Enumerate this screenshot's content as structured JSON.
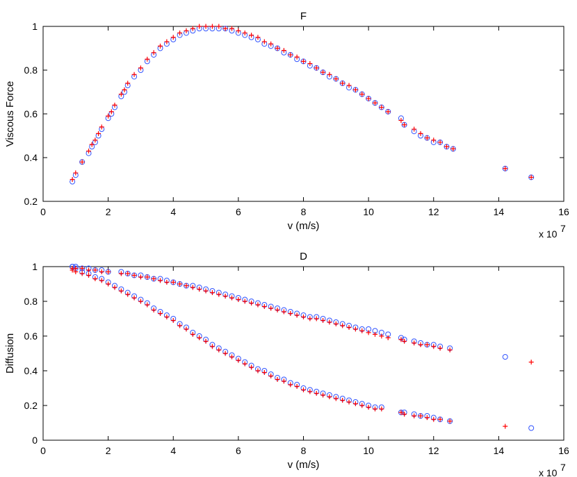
{
  "x_multiplier": "x 10",
  "x_exponent": "7",
  "colors": {
    "series_circle": "#3355ff",
    "series_plus": "#ff0000"
  },
  "chart_data": [
    {
      "type": "scatter",
      "title": "F",
      "xlabel": "v (m/s)",
      "ylabel": "Viscous Force",
      "xlim": [
        0,
        16
      ],
      "ylim": [
        0.2,
        1.0
      ],
      "xticks": [
        0,
        2,
        4,
        6,
        8,
        10,
        12,
        14,
        16
      ],
      "yticks": [
        0.2,
        0.4,
        0.6,
        0.8,
        1.0
      ],
      "xtick_labels": [
        "0",
        "2",
        "4",
        "6",
        "8",
        "10",
        "12",
        "14",
        "16"
      ],
      "ytick_labels": [
        "0.2",
        "0.4",
        "0.6",
        "0.8",
        "1"
      ],
      "grid": false,
      "series": [
        {
          "marker": "circle",
          "color": "#3355ff",
          "x": [
            0.9,
            1.0,
            1.2,
            1.4,
            1.5,
            1.6,
            1.7,
            1.8,
            2.0,
            2.1,
            2.2,
            2.4,
            2.5,
            2.6,
            2.8,
            3.0,
            3.2,
            3.4,
            3.6,
            3.8,
            4.0,
            4.2,
            4.4,
            4.6,
            4.8,
            5.0,
            5.2,
            5.4,
            5.6,
            5.8,
            6.0,
            6.2,
            6.4,
            6.6,
            6.8,
            7.0,
            7.2,
            7.4,
            7.6,
            7.8,
            8.0,
            8.2,
            8.4,
            8.6,
            8.8,
            9.0,
            9.2,
            9.4,
            9.6,
            9.8,
            10.0,
            10.2,
            10.4,
            10.6,
            11.0,
            11.1,
            11.4,
            11.6,
            11.8,
            12.0,
            12.2,
            12.4,
            12.6,
            14.2,
            15.0
          ],
          "y": [
            0.29,
            0.32,
            0.38,
            0.42,
            0.45,
            0.47,
            0.5,
            0.53,
            0.58,
            0.6,
            0.63,
            0.68,
            0.7,
            0.73,
            0.77,
            0.8,
            0.84,
            0.87,
            0.9,
            0.92,
            0.94,
            0.96,
            0.97,
            0.98,
            0.99,
            0.99,
            0.99,
            0.99,
            0.99,
            0.98,
            0.97,
            0.96,
            0.95,
            0.94,
            0.92,
            0.91,
            0.9,
            0.88,
            0.87,
            0.85,
            0.84,
            0.82,
            0.81,
            0.79,
            0.77,
            0.76,
            0.74,
            0.72,
            0.71,
            0.69,
            0.67,
            0.65,
            0.63,
            0.61,
            0.58,
            0.55,
            0.52,
            0.5,
            0.49,
            0.47,
            0.47,
            0.45,
            0.44,
            0.35,
            0.31
          ]
        },
        {
          "marker": "plus",
          "color": "#ff0000",
          "x": [
            0.9,
            1.0,
            1.2,
            1.4,
            1.5,
            1.6,
            1.7,
            1.8,
            2.0,
            2.1,
            2.2,
            2.4,
            2.5,
            2.6,
            2.8,
            3.0,
            3.2,
            3.4,
            3.6,
            3.8,
            4.0,
            4.2,
            4.4,
            4.6,
            4.8,
            5.0,
            5.2,
            5.4,
            5.6,
            5.8,
            6.0,
            6.2,
            6.4,
            6.6,
            6.8,
            7.0,
            7.2,
            7.4,
            7.6,
            7.8,
            8.0,
            8.2,
            8.4,
            8.6,
            8.8,
            9.0,
            9.2,
            9.4,
            9.6,
            9.8,
            10.0,
            10.2,
            10.4,
            10.6,
            11.0,
            11.1,
            11.4,
            11.6,
            11.8,
            12.0,
            12.2,
            12.4,
            12.6,
            14.2,
            15.0
          ],
          "y": [
            0.3,
            0.33,
            0.38,
            0.43,
            0.46,
            0.48,
            0.51,
            0.54,
            0.59,
            0.61,
            0.64,
            0.69,
            0.71,
            0.74,
            0.78,
            0.81,
            0.85,
            0.88,
            0.91,
            0.93,
            0.95,
            0.97,
            0.98,
            0.99,
            1.0,
            1.0,
            1.0,
            1.0,
            0.99,
            0.99,
            0.98,
            0.97,
            0.96,
            0.95,
            0.93,
            0.92,
            0.9,
            0.89,
            0.87,
            0.86,
            0.84,
            0.83,
            0.81,
            0.79,
            0.78,
            0.76,
            0.74,
            0.73,
            0.71,
            0.69,
            0.67,
            0.65,
            0.63,
            0.61,
            0.57,
            0.55,
            0.53,
            0.51,
            0.49,
            0.48,
            0.47,
            0.45,
            0.44,
            0.35,
            0.31
          ]
        }
      ]
    },
    {
      "type": "scatter",
      "title": "D",
      "xlabel": "v (m/s)",
      "ylabel": "Diffusion",
      "xlim": [
        0,
        16
      ],
      "ylim": [
        0,
        1.0
      ],
      "xticks": [
        0,
        2,
        4,
        6,
        8,
        10,
        12,
        14,
        16
      ],
      "yticks": [
        0,
        0.2,
        0.4,
        0.6,
        0.8,
        1.0
      ],
      "xtick_labels": [
        "0",
        "2",
        "4",
        "6",
        "8",
        "10",
        "12",
        "14",
        "16"
      ],
      "ytick_labels": [
        "0",
        "0.2",
        "0.4",
        "0.6",
        "0.8",
        "1"
      ],
      "grid": false,
      "series": [
        {
          "marker": "circle",
          "color": "#3355ff",
          "x": [
            0.9,
            1.0,
            1.2,
            1.4,
            1.6,
            1.8,
            2.0,
            2.4,
            2.6,
            2.8,
            3.0,
            3.2,
            3.4,
            3.6,
            3.8,
            4.0,
            4.2,
            4.4,
            4.6,
            4.8,
            5.0,
            5.2,
            5.4,
            5.6,
            5.8,
            6.0,
            6.2,
            6.4,
            6.6,
            6.8,
            7.0,
            7.2,
            7.4,
            7.6,
            7.8,
            8.0,
            8.2,
            8.4,
            8.6,
            8.8,
            9.0,
            9.2,
            9.4,
            9.6,
            9.8,
            10.0,
            10.2,
            10.4,
            10.6,
            11.0,
            11.1,
            11.4,
            11.6,
            11.8,
            12.0,
            12.2,
            12.5,
            14.2,
            0.9,
            1.0,
            1.2,
            1.4,
            1.6,
            1.8,
            2.0,
            2.2,
            2.4,
            2.6,
            2.8,
            3.0,
            3.2,
            3.4,
            3.6,
            3.8,
            4.0,
            4.2,
            4.4,
            4.6,
            4.8,
            5.0,
            5.2,
            5.4,
            5.6,
            5.8,
            6.0,
            6.2,
            6.4,
            6.6,
            6.8,
            7.0,
            7.2,
            7.4,
            7.6,
            7.8,
            8.0,
            8.2,
            8.4,
            8.6,
            8.8,
            9.0,
            9.2,
            9.4,
            9.6,
            9.8,
            10.0,
            10.2,
            10.4,
            11.0,
            11.1,
            11.4,
            11.6,
            11.8,
            12.0,
            12.2,
            12.5,
            15.0
          ],
          "y": [
            1.0,
            1.0,
            0.99,
            0.99,
            0.98,
            0.98,
            0.97,
            0.97,
            0.96,
            0.95,
            0.95,
            0.94,
            0.93,
            0.93,
            0.92,
            0.91,
            0.9,
            0.89,
            0.89,
            0.88,
            0.87,
            0.86,
            0.85,
            0.84,
            0.83,
            0.82,
            0.81,
            0.8,
            0.79,
            0.78,
            0.77,
            0.76,
            0.75,
            0.74,
            0.73,
            0.72,
            0.71,
            0.71,
            0.7,
            0.69,
            0.68,
            0.67,
            0.66,
            0.65,
            0.64,
            0.64,
            0.63,
            0.62,
            0.61,
            0.59,
            0.58,
            0.57,
            0.56,
            0.55,
            0.55,
            0.54,
            0.53,
            0.48,
            1.0,
            0.99,
            0.97,
            0.96,
            0.94,
            0.93,
            0.91,
            0.89,
            0.87,
            0.85,
            0.83,
            0.81,
            0.79,
            0.76,
            0.74,
            0.72,
            0.7,
            0.67,
            0.65,
            0.62,
            0.6,
            0.58,
            0.55,
            0.53,
            0.51,
            0.49,
            0.47,
            0.45,
            0.43,
            0.41,
            0.4,
            0.38,
            0.36,
            0.35,
            0.33,
            0.32,
            0.3,
            0.29,
            0.28,
            0.27,
            0.26,
            0.25,
            0.24,
            0.23,
            0.22,
            0.21,
            0.2,
            0.19,
            0.19,
            0.16,
            0.16,
            0.15,
            0.14,
            0.14,
            0.13,
            0.12,
            0.11,
            0.07
          ]
        },
        {
          "marker": "plus",
          "color": "#ff0000",
          "x": [
            0.9,
            1.0,
            1.2,
            1.4,
            1.6,
            1.8,
            2.0,
            2.4,
            2.6,
            2.8,
            3.0,
            3.2,
            3.4,
            3.6,
            3.8,
            4.0,
            4.2,
            4.4,
            4.6,
            4.8,
            5.0,
            5.2,
            5.4,
            5.6,
            5.8,
            6.0,
            6.2,
            6.4,
            6.6,
            6.8,
            7.0,
            7.2,
            7.4,
            7.6,
            7.8,
            8.0,
            8.2,
            8.4,
            8.6,
            8.8,
            9.0,
            9.2,
            9.4,
            9.6,
            9.8,
            10.0,
            10.2,
            10.4,
            10.6,
            11.0,
            11.1,
            11.4,
            11.6,
            11.8,
            12.0,
            12.2,
            12.5,
            15.0,
            0.9,
            1.0,
            1.2,
            1.4,
            1.6,
            1.8,
            2.0,
            2.2,
            2.4,
            2.6,
            2.8,
            3.0,
            3.2,
            3.4,
            3.6,
            3.8,
            4.0,
            4.2,
            4.4,
            4.6,
            4.8,
            5.0,
            5.2,
            5.4,
            5.6,
            5.8,
            6.0,
            6.2,
            6.4,
            6.6,
            6.8,
            7.0,
            7.2,
            7.4,
            7.6,
            7.8,
            8.0,
            8.2,
            8.4,
            8.6,
            8.8,
            9.0,
            9.2,
            9.4,
            9.6,
            9.8,
            10.0,
            10.2,
            10.4,
            11.0,
            11.1,
            11.4,
            11.6,
            11.8,
            12.0,
            12.2,
            12.5,
            14.2
          ],
          "y": [
            0.99,
            0.99,
            0.99,
            0.98,
            0.98,
            0.97,
            0.97,
            0.96,
            0.96,
            0.95,
            0.94,
            0.94,
            0.93,
            0.92,
            0.91,
            0.91,
            0.9,
            0.89,
            0.88,
            0.87,
            0.86,
            0.85,
            0.84,
            0.83,
            0.82,
            0.81,
            0.8,
            0.79,
            0.78,
            0.77,
            0.76,
            0.75,
            0.74,
            0.73,
            0.72,
            0.71,
            0.7,
            0.7,
            0.69,
            0.68,
            0.67,
            0.66,
            0.65,
            0.64,
            0.63,
            0.62,
            0.61,
            0.6,
            0.59,
            0.58,
            0.57,
            0.56,
            0.55,
            0.55,
            0.54,
            0.53,
            0.52,
            0.45,
            0.98,
            0.97,
            0.96,
            0.95,
            0.93,
            0.92,
            0.9,
            0.88,
            0.86,
            0.84,
            0.82,
            0.8,
            0.78,
            0.75,
            0.73,
            0.71,
            0.69,
            0.66,
            0.64,
            0.61,
            0.59,
            0.57,
            0.54,
            0.52,
            0.5,
            0.48,
            0.46,
            0.44,
            0.42,
            0.4,
            0.39,
            0.37,
            0.35,
            0.34,
            0.32,
            0.31,
            0.29,
            0.28,
            0.27,
            0.26,
            0.25,
            0.24,
            0.23,
            0.22,
            0.21,
            0.2,
            0.19,
            0.18,
            0.18,
            0.16,
            0.15,
            0.14,
            0.14,
            0.13,
            0.12,
            0.12,
            0.11,
            0.08
          ]
        }
      ]
    }
  ]
}
